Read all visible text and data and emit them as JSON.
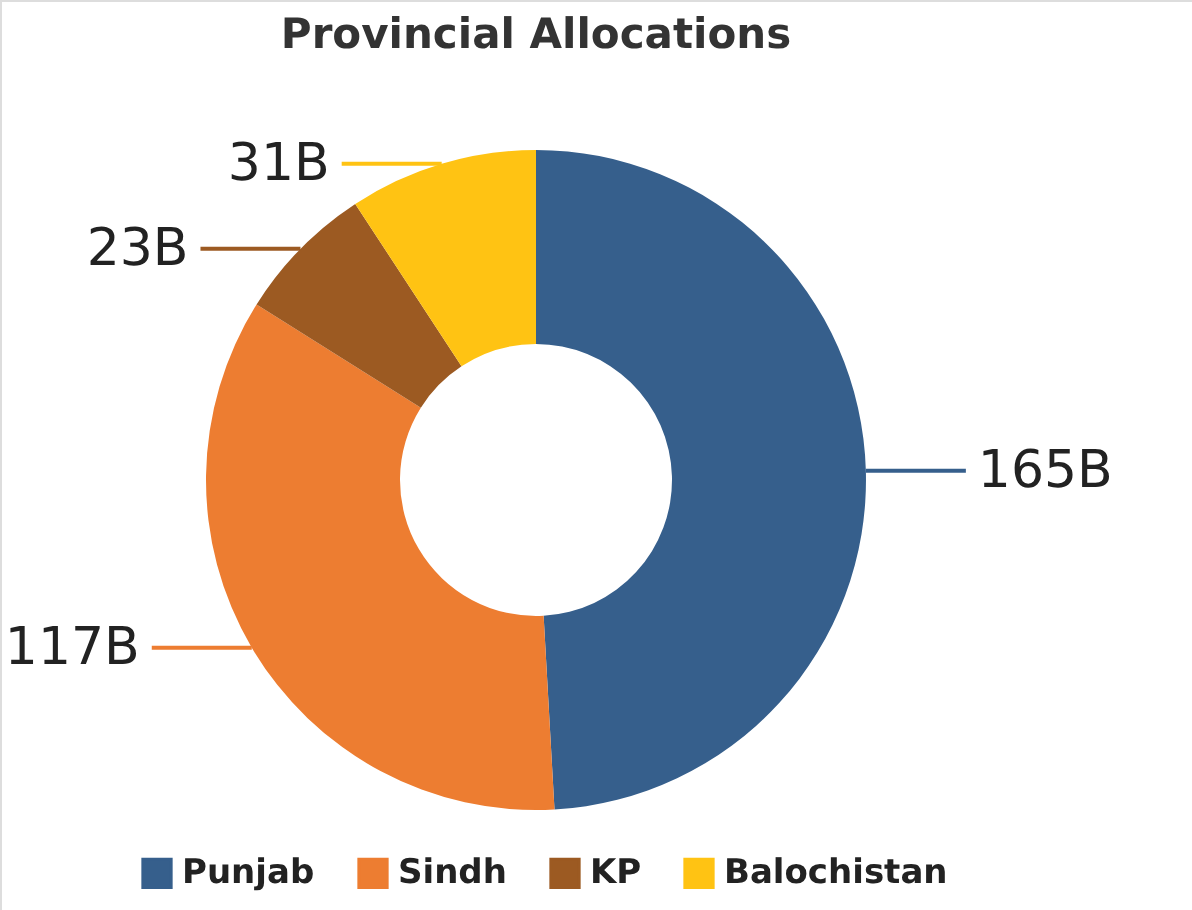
{
  "chart_data": {
    "type": "donut",
    "title": "Provincial Allocations",
    "categories": [
      "Punjab",
      "Sindh",
      "KP",
      "Balochistan"
    ],
    "values": [
      165,
      117,
      23,
      31
    ],
    "value_labels": [
      "165B",
      "117B",
      "23B",
      "31B"
    ],
    "colors": [
      "#365f8c",
      "#ed7d31",
      "#9c5a22",
      "#ffc313"
    ],
    "legend": "bottom"
  }
}
